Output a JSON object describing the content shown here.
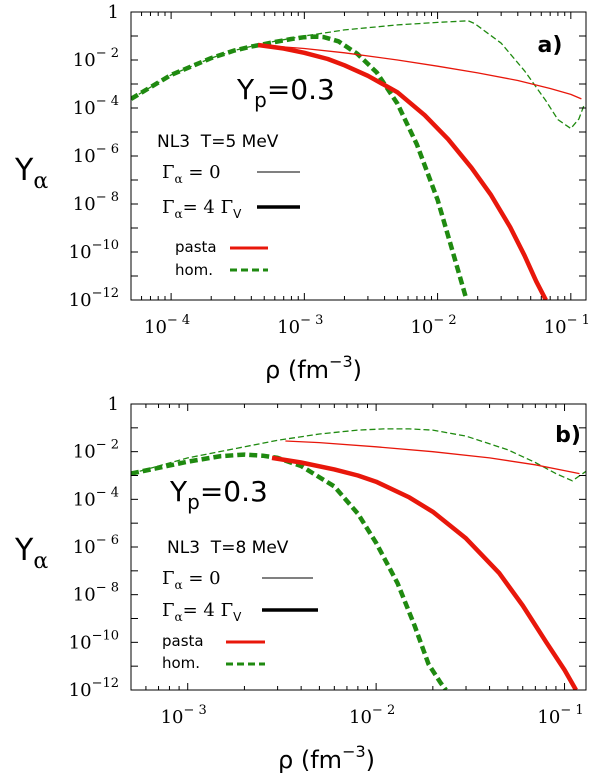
{
  "chart_data": [
    {
      "type": "line",
      "panel_label": "a)",
      "xlabel": "ρ (fm",
      "xlabel_exp": "−3",
      "xlabel_close": ")",
      "ylabel": "Y",
      "ylabel_sub": "α",
      "xscale": "log",
      "yscale": "log",
      "xlim": [
        5e-05,
        0.13
      ],
      "ylim": [
        1e-12,
        1
      ],
      "x_ticks": [
        {
          "value": 0.0001,
          "base": "10",
          "exp": "− 4"
        },
        {
          "value": 0.001,
          "base": "10",
          "exp": "− 3"
        },
        {
          "value": 0.01,
          "base": "10",
          "exp": "− 2"
        },
        {
          "value": 0.1,
          "base": "10",
          "exp": "− 1"
        }
      ],
      "y_ticks": [
        {
          "value": 1,
          "base": "1",
          "exp": ""
        },
        {
          "value": 0.01,
          "base": "10",
          "exp": "− 2"
        },
        {
          "value": 0.0001,
          "base": "10",
          "exp": "− 4"
        },
        {
          "value": 1e-06,
          "base": "10",
          "exp": "− 6"
        },
        {
          "value": 1e-08,
          "base": "10",
          "exp": "− 8"
        },
        {
          "value": 1e-10,
          "base": "10",
          "exp": "−10"
        },
        {
          "value": 1e-12,
          "base": "10",
          "exp": "−12"
        }
      ],
      "annotation_yp": "Y",
      "annotation_yp_sub": "p",
      "annotation_yp_val": "=0.3",
      "annotation_model": "NL3  T=5 MeV",
      "legend": [
        {
          "sym": "Γ",
          "sub": "α",
          "text": " = 0",
          "sub2": "",
          "style": "thin"
        },
        {
          "sym": "Γ",
          "sub": "α",
          "text": "= 4 Γ",
          "sub2": "V",
          "style": "thick"
        },
        {
          "text": "pasta",
          "color": "#e8170b",
          "style": "solid"
        },
        {
          "text": "hom.",
          "color": "#1f8a10",
          "style": "dashed"
        }
      ],
      "series": [
        {
          "name": "hom.",
          "gamma": "Γα = 0",
          "color": "#1f8a10",
          "dash": true,
          "thick": false,
          "x": [
            5e-05,
            0.0001,
            0.0002,
            0.0003,
            0.0005,
            0.001,
            0.002,
            0.005,
            0.01,
            0.017,
            0.019,
            0.03,
            0.045,
            0.065,
            0.08,
            0.1,
            0.115,
            0.125
          ],
          "y": [
            0.00024,
            0.0024,
            0.012,
            0.025,
            0.05,
            0.1,
            0.18,
            0.29,
            0.37,
            0.43,
            0.33,
            0.05,
            0.0035,
            0.0002,
            3.3e-05,
            1.4e-05,
            3.5e-05,
            0.00012
          ]
        },
        {
          "name": "hom.",
          "gamma": "Γα = 4 ΓV",
          "color": "#1f8a10",
          "dash": true,
          "thick": true,
          "x": [
            5e-05,
            0.0001,
            0.0002,
            0.0003,
            0.0004,
            0.0006,
            0.0008,
            0.001,
            0.0012,
            0.0014,
            0.0018,
            0.0025,
            0.0035,
            0.005,
            0.007,
            0.01,
            0.013,
            0.0165
          ],
          "y": [
            0.00024,
            0.0024,
            0.012,
            0.025,
            0.036,
            0.056,
            0.075,
            0.089,
            0.094,
            0.09,
            0.06,
            0.018,
            0.003,
            0.00015,
            3e-06,
            1.5e-08,
            1e-10,
            1e-12
          ]
        },
        {
          "name": "pasta",
          "gamma": "Γα = 0",
          "color": "#e8170b",
          "dash": false,
          "thick": false,
          "x": [
            0.00045,
            0.001,
            0.002,
            0.005,
            0.01,
            0.02,
            0.04,
            0.07,
            0.1,
            0.12
          ],
          "y": [
            0.042,
            0.03,
            0.02,
            0.01,
            0.0055,
            0.0029,
            0.0014,
            0.00065,
            0.00037,
            0.00024
          ]
        },
        {
          "name": "pasta",
          "gamma": "Γα = 4 ΓV",
          "color": "#e8170b",
          "dash": false,
          "thick": true,
          "x": [
            0.00045,
            0.0007,
            0.001,
            0.0015,
            0.002,
            0.003,
            0.005,
            0.008,
            0.012,
            0.018,
            0.025,
            0.035,
            0.045,
            0.055,
            0.065
          ],
          "y": [
            0.042,
            0.03,
            0.02,
            0.011,
            0.006,
            0.0022,
            0.00045,
            5e-05,
            5e-06,
            3.2e-07,
            2.5e-08,
            1.1e-09,
            7e-11,
            6e-12,
            1e-12
          ]
        }
      ]
    },
    {
      "type": "line",
      "panel_label": "b)",
      "xlabel": "ρ (fm",
      "xlabel_exp": "−3",
      "xlabel_close": ")",
      "ylabel": "Y",
      "ylabel_sub": "α",
      "xscale": "log",
      "yscale": "log",
      "xlim": [
        0.0005,
        0.13
      ],
      "ylim": [
        1e-12,
        1
      ],
      "x_ticks": [
        {
          "value": 0.001,
          "base": "10",
          "exp": "− 3"
        },
        {
          "value": 0.01,
          "base": "10",
          "exp": "− 2"
        },
        {
          "value": 0.1,
          "base": "10",
          "exp": "− 1"
        }
      ],
      "y_ticks": [
        {
          "value": 1,
          "base": "1",
          "exp": ""
        },
        {
          "value": 0.01,
          "base": "10",
          "exp": "− 2"
        },
        {
          "value": 0.0001,
          "base": "10",
          "exp": "− 4"
        },
        {
          "value": 1e-06,
          "base": "10",
          "exp": "− 6"
        },
        {
          "value": 1e-08,
          "base": "10",
          "exp": "− 8"
        },
        {
          "value": 1e-10,
          "base": "10",
          "exp": "−10"
        },
        {
          "value": 1e-12,
          "base": "10",
          "exp": "−12"
        }
      ],
      "annotation_yp": "Y",
      "annotation_yp_sub": "p",
      "annotation_yp_val": "=0.3",
      "annotation_model": "NL3  T=8 MeV",
      "legend": [
        {
          "sym": "Γ",
          "sub": "α",
          "text": " = 0",
          "sub2": "",
          "style": "thin"
        },
        {
          "sym": "Γ",
          "sub": "α",
          "text": "= 4 Γ",
          "sub2": "V",
          "style": "thick"
        },
        {
          "text": "pasta",
          "color": "#e8170b",
          "style": "solid"
        },
        {
          "text": "hom.",
          "color": "#1f8a10",
          "style": "dashed"
        }
      ],
      "series": [
        {
          "name": "hom.",
          "gamma": "Γα = 0",
          "color": "#1f8a10",
          "dash": true,
          "thick": false,
          "x": [
            0.0005,
            0.001,
            0.002,
            0.003,
            0.005,
            0.008,
            0.011,
            0.015,
            0.02,
            0.03,
            0.05,
            0.07,
            0.09,
            0.11,
            0.13
          ],
          "y": [
            0.0012,
            0.0055,
            0.016,
            0.03,
            0.055,
            0.08,
            0.09,
            0.09,
            0.08,
            0.045,
            0.012,
            0.0035,
            0.0012,
            0.0006,
            0.0015
          ]
        },
        {
          "name": "hom.",
          "gamma": "Γα = 4 ΓV",
          "color": "#1f8a10",
          "dash": true,
          "thick": true,
          "x": [
            0.0005,
            0.001,
            0.0015,
            0.002,
            0.0025,
            0.003,
            0.004,
            0.006,
            0.008,
            0.01,
            0.013,
            0.016,
            0.019,
            0.022,
            0.0235
          ],
          "y": [
            0.0012,
            0.0038,
            0.0065,
            0.0075,
            0.0068,
            0.0055,
            0.0025,
            0.00035,
            2.5e-05,
            1.5e-06,
            3e-08,
            5e-10,
            1.2e-11,
            2e-12,
            1e-12
          ]
        },
        {
          "name": "pasta",
          "gamma": "Γα = 0",
          "color": "#e8170b",
          "dash": false,
          "thick": false,
          "x": [
            0.0033,
            0.005,
            0.01,
            0.02,
            0.04,
            0.07,
            0.1,
            0.12
          ],
          "y": [
            0.028,
            0.024,
            0.016,
            0.01,
            0.0055,
            0.0028,
            0.0016,
            0.0012
          ]
        },
        {
          "name": "pasta",
          "gamma": "Γα = 4 ΓV",
          "color": "#e8170b",
          "dash": false,
          "thick": true,
          "x": [
            0.0028,
            0.004,
            0.006,
            0.008,
            0.01,
            0.015,
            0.02,
            0.03,
            0.045,
            0.06,
            0.08,
            0.1,
            0.115
          ],
          "y": [
            0.0055,
            0.0035,
            0.0018,
            0.001,
            0.00055,
            0.00012,
            3e-05,
            2.3e-06,
            8e-08,
            3.5e-09,
            1e-10,
            7e-12,
            1e-12
          ]
        }
      ]
    }
  ]
}
